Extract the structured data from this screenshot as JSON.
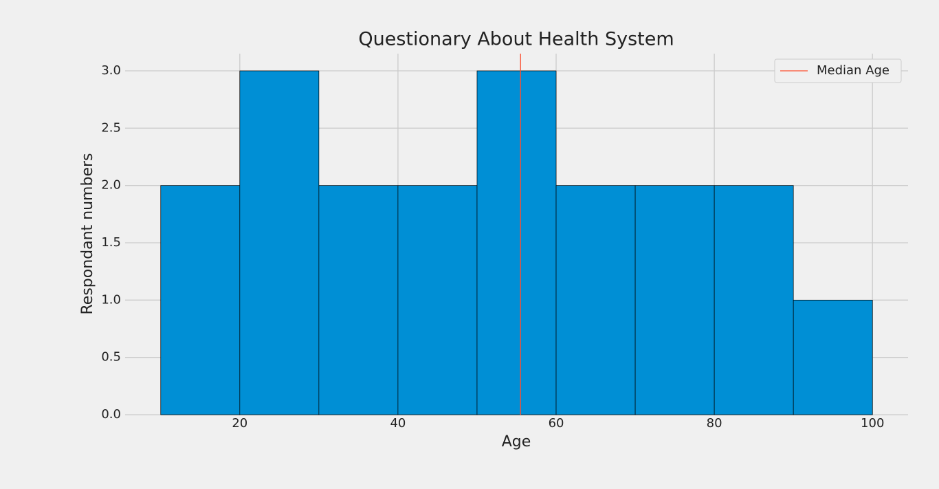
{
  "chart_data": {
    "type": "histogram",
    "title": "Questionary About Health System",
    "xlabel": "Age",
    "ylabel": "Respondant numbers",
    "bins": [
      10,
      20,
      30,
      40,
      50,
      60,
      70,
      80,
      90,
      100
    ],
    "values": [
      2,
      3,
      2,
      2,
      3,
      2,
      2,
      2,
      1
    ],
    "color": "#008fd5",
    "edgecolor": "#000000",
    "vline": {
      "name": "Median Age",
      "value": 55.5,
      "color": "#fc4f30"
    },
    "xlim": [
      5.5,
      104.5
    ],
    "xticks": [
      20,
      40,
      60,
      80,
      100
    ],
    "ylim": [
      0,
      3.15
    ],
    "yticks": [
      {
        "value": 0,
        "label": "0.0"
      },
      0.5,
      {
        "value": 1,
        "label": "1.0"
      },
      1.5,
      {
        "value": 2,
        "label": "2.0"
      },
      2.5,
      {
        "value": 3,
        "label": "3.0"
      }
    ],
    "grid": true,
    "legend": "upper right"
  }
}
